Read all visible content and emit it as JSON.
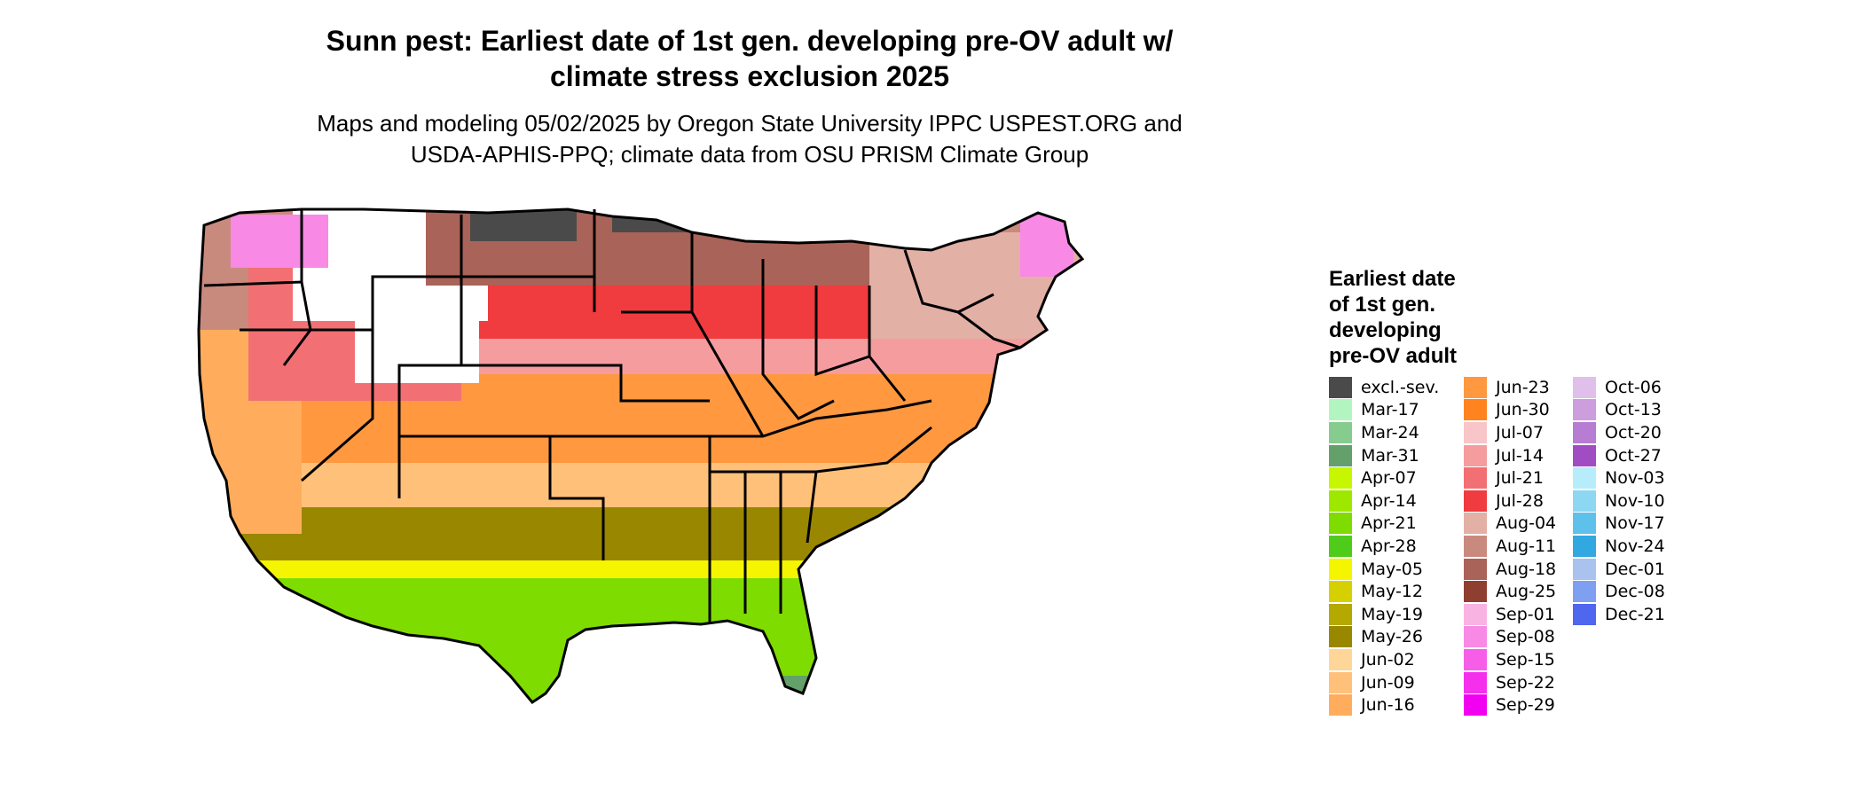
{
  "title": {
    "line1": "Sunn pest: Earliest date of 1st gen. developing pre-OV adult w/",
    "line2": "climate stress exclusion 2025"
  },
  "subtitle": {
    "line1": "Maps and modeling 05/02/2025 by Oregon State University IPPC USPEST.ORG and",
    "line2": "USDA-APHIS-PPQ; climate data from OSU PRISM Climate Group"
  },
  "legend": {
    "title_lines": [
      "Earliest date",
      "of 1st gen.",
      "developing",
      "pre-OV adult"
    ],
    "columns": [
      [
        {
          "label": "excl.-sev.",
          "color": "#4a4a4a"
        },
        {
          "label": "Mar-17",
          "color": "#b3f5c0"
        },
        {
          "label": "Mar-24",
          "color": "#86cc8e"
        },
        {
          "label": "Mar-31",
          "color": "#64a06a"
        },
        {
          "label": "Apr-07",
          "color": "#c6f700"
        },
        {
          "label": "Apr-14",
          "color": "#9ee800"
        },
        {
          "label": "Apr-21",
          "color": "#7fdc00"
        },
        {
          "label": "Apr-28",
          "color": "#4fcc1a"
        },
        {
          "label": "May-05",
          "color": "#f5f500"
        },
        {
          "label": "May-12",
          "color": "#d6d000"
        },
        {
          "label": "May-19",
          "color": "#b5a800"
        },
        {
          "label": "May-26",
          "color": "#9a8700"
        },
        {
          "label": "Jun-02",
          "color": "#ffd69a"
        },
        {
          "label": "Jun-09",
          "color": "#ffc17a"
        },
        {
          "label": "Jun-16",
          "color": "#ffad5c"
        }
      ],
      [
        {
          "label": "Jun-23",
          "color": "#ff983f"
        },
        {
          "label": "Jun-30",
          "color": "#ff8420"
        },
        {
          "label": "Jul-07",
          "color": "#f8c5c8"
        },
        {
          "label": "Jul-14",
          "color": "#f59c9f"
        },
        {
          "label": "Jul-21",
          "color": "#f27073"
        },
        {
          "label": "Jul-28",
          "color": "#f03b3f"
        },
        {
          "label": "Aug-04",
          "color": "#e3b0a6"
        },
        {
          "label": "Aug-11",
          "color": "#c98a7e"
        },
        {
          "label": "Aug-18",
          "color": "#aa6358"
        },
        {
          "label": "Aug-25",
          "color": "#8f3f30"
        },
        {
          "label": "Sep-01",
          "color": "#f9b3e3"
        },
        {
          "label": "Sep-08",
          "color": "#f889e5"
        },
        {
          "label": "Sep-15",
          "color": "#f65ee8"
        },
        {
          "label": "Sep-22",
          "color": "#f530ec"
        },
        {
          "label": "Sep-29",
          "color": "#f200f2"
        }
      ],
      [
        {
          "label": "Oct-06",
          "color": "#e0c0ea"
        },
        {
          "label": "Oct-13",
          "color": "#cc9ede"
        },
        {
          "label": "Oct-20",
          "color": "#b67dd2"
        },
        {
          "label": "Oct-27",
          "color": "#a04dc4"
        },
        {
          "label": "Nov-03",
          "color": "#b7ecfb"
        },
        {
          "label": "Nov-10",
          "color": "#8dd7f3"
        },
        {
          "label": "Nov-17",
          "color": "#5ec1ec"
        },
        {
          "label": "Nov-24",
          "color": "#31a8e0"
        },
        {
          "label": "Dec-01",
          "color": "#a9c2ee"
        },
        {
          "label": "Dec-08",
          "color": "#7f9ff0"
        },
        {
          "label": "Dec-21",
          "color": "#4f66ee"
        }
      ]
    ]
  },
  "map": {
    "region_colors": {
      "excluded": "#4a4a4a",
      "pink_north": "#f889e5",
      "brown_north": "#aa6358",
      "red_mid": "#f03b3f",
      "pink_mid": "#f59c9f",
      "orange": "#ff983f",
      "peach": "#ffc17a",
      "olive": "#9a8700",
      "yellow": "#f5f500",
      "green": "#7fdc00"
    }
  }
}
